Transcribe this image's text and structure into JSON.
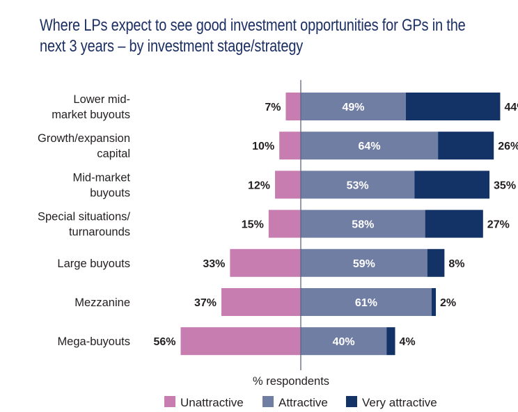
{
  "chart_data": {
    "type": "bar",
    "orientation": "horizontal",
    "stacked": "diverging",
    "title": "Where LPs expect to see good investment opportunities for GPs in the next 3 years – by investment stage/strategy",
    "title_lines": [
      "Where LPs expect to see good investment opportunities for GPs in the",
      "next 3 years – by investment stage/strategy"
    ],
    "xlabel": "% respondents",
    "ylabel": "",
    "categories": [
      [
        "Lower mid-",
        "market buyouts"
      ],
      [
        "Growth/expansion",
        "capital"
      ],
      [
        "Mid-market",
        "buyouts"
      ],
      [
        "Special situations/",
        "turnarounds"
      ],
      [
        "Large buyouts"
      ],
      [
        "Mezzanine"
      ],
      [
        "Mega-buyouts"
      ]
    ],
    "series": [
      {
        "name": "Unattractive",
        "color": "#c77db0",
        "direction": "left",
        "values": [
          7,
          10,
          12,
          15,
          33,
          37,
          56
        ]
      },
      {
        "name": "Attractive",
        "color": "#717ea4",
        "direction": "right",
        "values": [
          49,
          64,
          53,
          58,
          59,
          61,
          40
        ]
      },
      {
        "name": "Very attractive",
        "color": "#133366",
        "direction": "right",
        "values": [
          44,
          26,
          35,
          27,
          8,
          2,
          4
        ]
      }
    ],
    "value_suffix": "%",
    "xlim": [
      -60,
      100
    ],
    "grid": false,
    "legend": {
      "position": "bottom",
      "entries": [
        "Unattractive",
        "Attractive",
        "Very attractive"
      ]
    }
  },
  "colors": {
    "title": "#1b2f63",
    "axis": "#5a6680",
    "text": "#231f20"
  }
}
